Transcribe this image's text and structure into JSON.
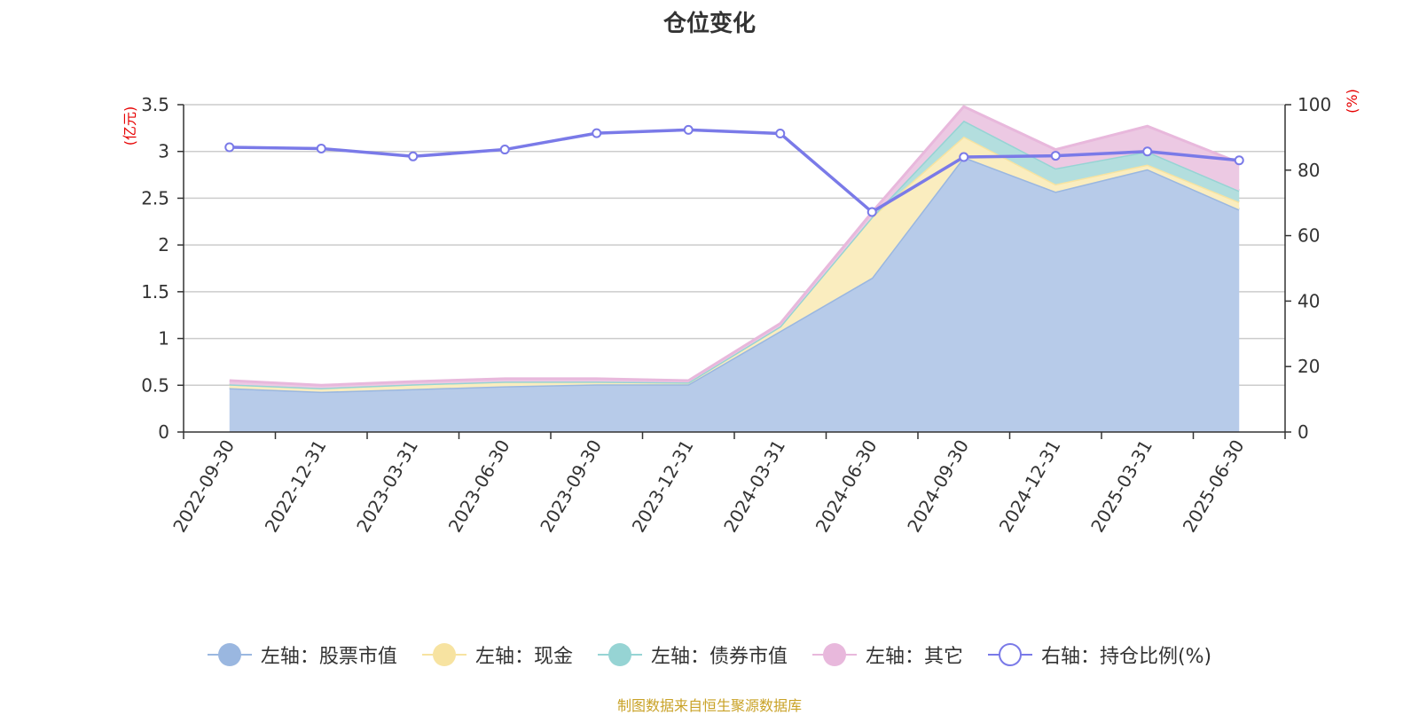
{
  "title": "仓位变化",
  "footer": "制图数据来自恒生聚源数据库",
  "chart_data": {
    "type": "area",
    "categories": [
      "2022-09-30",
      "2022-12-31",
      "2023-03-31",
      "2023-06-30",
      "2023-09-30",
      "2023-12-31",
      "2024-03-31",
      "2024-06-30",
      "2024-09-30",
      "2024-12-31",
      "2025-03-31",
      "2025-06-30"
    ],
    "y_left": {
      "unit": "(亿元)",
      "ylim": [
        0,
        3.5
      ],
      "ticks": [
        "0",
        "0.5",
        "1",
        "1.5",
        "2",
        "2.5",
        "3",
        "3.5"
      ]
    },
    "y_right": {
      "unit": "(%)",
      "ylim": [
        0,
        100
      ],
      "ticks": [
        "0",
        "20",
        "40",
        "60",
        "80",
        "100"
      ]
    },
    "series": [
      {
        "name": "左轴：股票市值",
        "axis": "left",
        "type": "stacked-area",
        "color": "#9ab7e0",
        "fill": "#b7cbe9",
        "values": [
          0.47,
          0.43,
          0.46,
          0.49,
          0.51,
          0.51,
          1.08,
          1.65,
          2.94,
          2.57,
          2.81,
          2.38
        ]
      },
      {
        "name": "左轴：现金",
        "axis": "left",
        "type": "stacked-area",
        "color": "#f7e3a1",
        "fill": "#faedbf",
        "values": [
          0.04,
          0.04,
          0.05,
          0.05,
          0.03,
          0.02,
          0.05,
          0.65,
          0.22,
          0.08,
          0.05,
          0.08
        ]
      },
      {
        "name": "左轴：债券市值",
        "axis": "left",
        "type": "stacked-area",
        "color": "#96d4d4",
        "fill": "#b3dede",
        "values": [
          0.0,
          0.0,
          0.0,
          0.0,
          0.0,
          0.0,
          0.0,
          0.0,
          0.17,
          0.17,
          0.14,
          0.12
        ]
      },
      {
        "name": "左轴：其它",
        "axis": "left",
        "type": "stacked-area",
        "color": "#e8b8dc",
        "fill": "#ecc9e3",
        "values": [
          0.04,
          0.03,
          0.03,
          0.03,
          0.03,
          0.02,
          0.03,
          0.05,
          0.15,
          0.2,
          0.27,
          0.3
        ]
      },
      {
        "name": "右轴：持仓比例(%)",
        "axis": "right",
        "type": "line",
        "color": "#7a7ae8",
        "values": [
          87.0,
          86.6,
          84.2,
          86.3,
          91.3,
          92.3,
          91.2,
          67.2,
          84.0,
          84.4,
          85.7,
          83.0
        ]
      }
    ],
    "grid": true,
    "legend_position": "bottom"
  }
}
